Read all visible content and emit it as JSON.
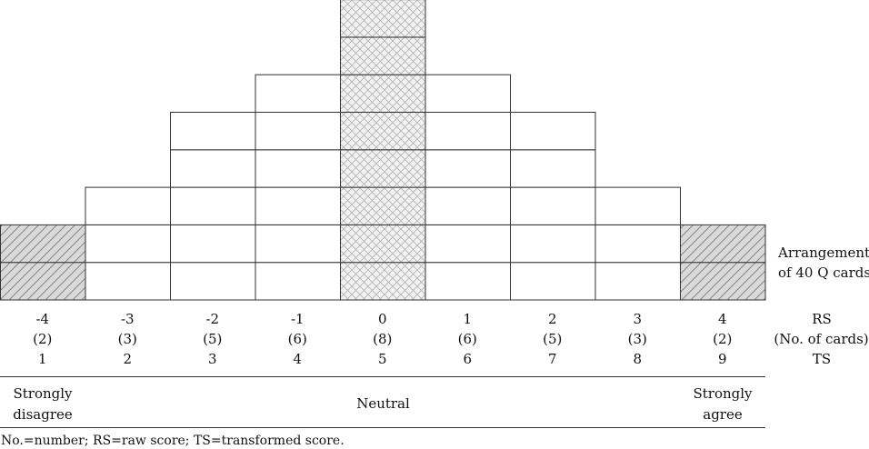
{
  "columns": [
    {
      "rs": "-4",
      "cards": "(2)",
      "ts": "1",
      "count": 2,
      "fill": "diagonal"
    },
    {
      "rs": "-3",
      "cards": "(3)",
      "ts": "2",
      "count": 3,
      "fill": "none"
    },
    {
      "rs": "-2",
      "cards": "(5)",
      "ts": "3",
      "count": 5,
      "fill": "none"
    },
    {
      "rs": "-1",
      "cards": "(6)",
      "ts": "4",
      "count": 6,
      "fill": "none"
    },
    {
      "rs": "0",
      "cards": "(8)",
      "ts": "5",
      "count": 8,
      "fill": "crosshatch"
    },
    {
      "rs": "1",
      "cards": "(6)",
      "ts": "6",
      "count": 6,
      "fill": "none"
    },
    {
      "rs": "2",
      "cards": "(5)",
      "ts": "7",
      "count": 5,
      "fill": "none"
    },
    {
      "rs": "3",
      "cards": "(3)",
      "ts": "8",
      "count": 3,
      "fill": "none"
    },
    {
      "rs": "4",
      "cards": "(2)",
      "ts": "9",
      "count": 2,
      "fill": "diagonal"
    }
  ],
  "arrangement_label_line1": "Arrangement",
  "arrangement_label_line2": "of 40 Q cards",
  "row_labels": {
    "rs": "RS",
    "cards": "(No. of cards)",
    "ts": "TS"
  },
  "scale": {
    "left_line1": "Strongly",
    "left_line2": "disagree",
    "middle": "Neutral",
    "right_line1": "Strongly",
    "right_line2": "agree"
  },
  "footnote": "No.=number; RS=raw score; TS=transformed score.",
  "colors": {
    "line": "#333333",
    "diagonal_bg": "#d9d9d9",
    "hatch": "#8c8c8c",
    "cross_bg": "#f2f2f2",
    "cross_line": "#b5b5b5"
  }
}
